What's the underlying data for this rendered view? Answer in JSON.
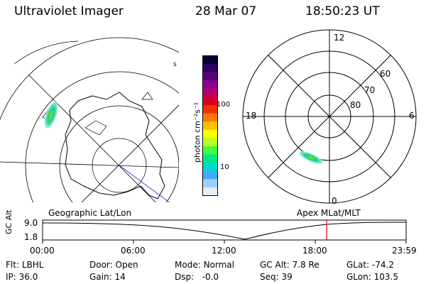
{
  "header": {
    "title": "Ultraviolet Imager",
    "date": "28 Mar 07",
    "time": "18:50:23 UT"
  },
  "colorbar": {
    "label": "photon cm⁻²s⁻¹",
    "ticks": [
      "100",
      "10"
    ],
    "colors": [
      "#000033",
      "#2a0060",
      "#5a007a",
      "#8a0090",
      "#b8006a",
      "#d80020",
      "#f03000",
      "#ff7a00",
      "#ffc000",
      "#ffff00",
      "#b8ff20",
      "#40ff40",
      "#00e880",
      "#00d8d0",
      "#40a8ff",
      "#9cd0ff",
      "#e4f0ff"
    ]
  },
  "geo_map": {
    "caption": "Geographic Lat/Lon",
    "marker_s": "s"
  },
  "polar_plot": {
    "caption": "Apex MLat/MLT",
    "mlt_labels": {
      "top": "12",
      "left": "18",
      "right": "6",
      "bottom": "0"
    },
    "lat_labels": [
      "60",
      "70",
      "80"
    ]
  },
  "altitude_plot": {
    "ylabel": "GC Alt",
    "yticks": [
      "9.0",
      "1.8"
    ],
    "xticks": [
      "00:00",
      "06:00",
      "12:00",
      "18:00",
      "23:59"
    ],
    "current_time_marker_color": "#e00000"
  },
  "info": {
    "flt_label": "Flt:",
    "flt_value": "LBHL",
    "ip_label": "IP:",
    "ip_value": "36.0",
    "door_label": "Door:",
    "door_value": "Open",
    "gain_label": "Gain:",
    "gain_value": "14",
    "mode_label": "Mode:",
    "mode_value": "Normal",
    "dsp_label": "Dsp:",
    "dsp_value": "-0.0",
    "gcalt_label": "GC Alt:",
    "gcalt_value": "7.8 Re",
    "seq_label": "Seq:",
    "seq_value": "39",
    "glat_label": "GLat:",
    "glat_value": "-74.2",
    "glon_label": "GLon:",
    "glon_value": "103.5"
  }
}
